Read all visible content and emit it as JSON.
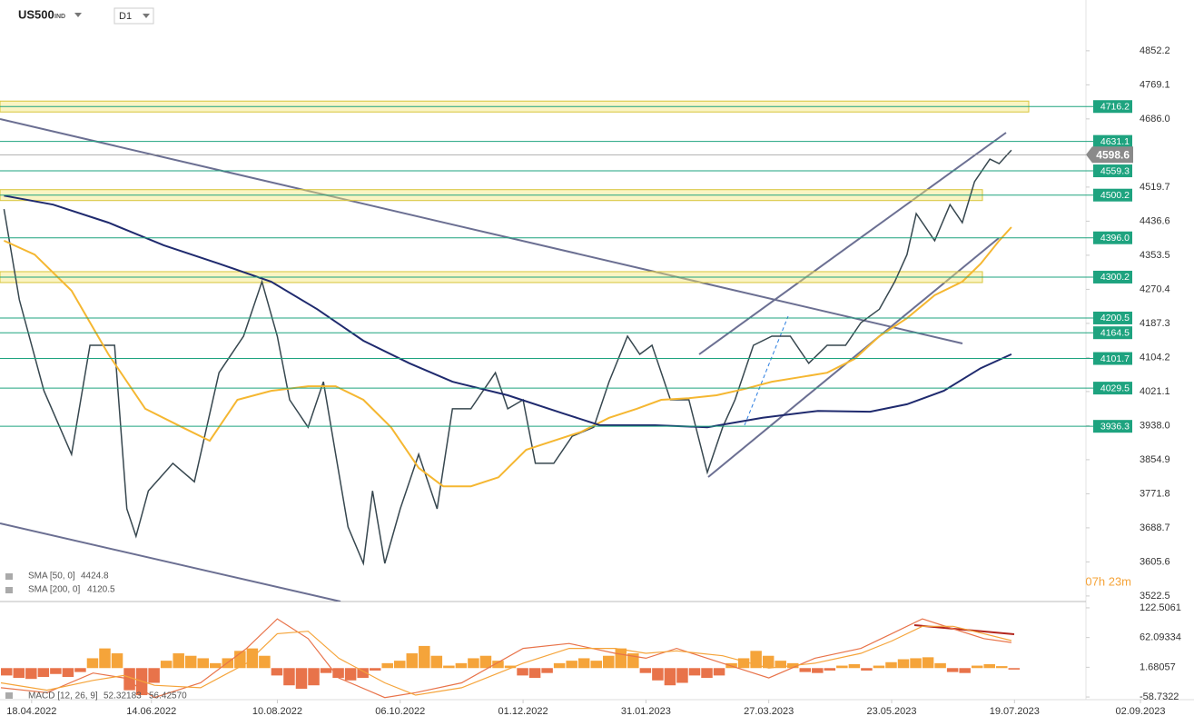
{
  "header": {
    "symbol": "US500",
    "market": "IND",
    "timeframe": "D1"
  },
  "chart_data": [
    {
      "type": "line",
      "xlim": [
        -10,
        361
      ],
      "ylim": [
        3509,
        4976
      ],
      "xticks": [
        {
          "value": 0,
          "label": "18.04.2022"
        },
        {
          "value": 39,
          "label": "14.06.2022"
        },
        {
          "value": 80,
          "label": "10.08.2022"
        },
        {
          "value": 120,
          "label": "06.10.2022"
        },
        {
          "value": 160,
          "label": "01.12.2022"
        },
        {
          "value": 200,
          "label": "31.01.2023"
        },
        {
          "value": 240,
          "label": "27.03.2023"
        },
        {
          "value": 280,
          "label": "23.05.2023"
        },
        {
          "value": 320,
          "label": "19.07.2023"
        },
        {
          "value": 361,
          "label": "02.09.2023"
        }
      ],
      "yticks": [
        4852.2,
        4769.1,
        {
          "value": 4686,
          "label": "4686.0"
        },
        4519.7,
        4436.6,
        4353.5,
        4270.4,
        4187.3,
        4104.2,
        4021.1,
        {
          "value": 3938,
          "label": "3938.0"
        },
        3854.9,
        3771.8,
        3688.7,
        3605.6,
        3522.5
      ],
      "series": [
        {
          "color": "#37474f",
          "x": [
            -9,
            -4,
            4,
            13,
            19,
            27,
            31,
            34,
            38,
            46,
            53,
            61,
            69,
            75,
            80,
            84,
            90,
            95,
            99,
            103,
            108,
            111,
            115,
            120,
            126,
            132,
            137,
            143,
            151,
            155,
            160,
            164,
            170,
            176,
            183,
            188,
            194,
            198,
            202,
            208,
            214,
            220,
            225,
            229,
            235,
            241,
            247,
            253,
            259,
            265,
            270,
            276,
            281,
            285,
            288,
            294,
            299,
            303,
            307,
            312,
            315,
            319
          ],
          "values": [
            4466,
            4245,
            4023,
            3868,
            4134,
            4134,
            3735,
            3668,
            3779,
            3846,
            3801,
            4067,
            4156,
            4289,
            4156,
            4001,
            3934,
            4045,
            3868,
            3691,
            3602,
            3779,
            3602,
            3735,
            3868,
            3735,
            3979,
            3979,
            4067,
            3979,
            4001,
            3846,
            3846,
            3912,
            3934,
            4045,
            4156,
            4112,
            4134,
            4001,
            4001,
            3824,
            3934,
            4001,
            4134,
            4156,
            4156,
            4090,
            4134,
            4134,
            4189,
            4222,
            4289,
            4355,
            4455,
            4389,
            4477,
            4433,
            4533,
            4588,
            4577,
            4610
          ]
        },
        {
          "name": "SMA [50, 0]",
          "last": 4424.8,
          "color": "#f5b731",
          "x": [
            -9,
            1,
            13,
            25,
            37,
            49,
            58,
            67,
            78,
            90,
            99,
            108,
            117,
            126,
            134,
            143,
            152,
            161,
            170,
            179,
            188,
            197,
            205,
            214,
            223,
            232,
            241,
            250,
            259,
            268,
            276,
            285,
            294,
            303,
            309,
            315,
            319
          ],
          "values": [
            4389,
            4355,
            4267,
            4112,
            3979,
            3934,
            3901,
            4001,
            4023,
            4034,
            4034,
            4001,
            3934,
            3835,
            3790,
            3790,
            3812,
            3879,
            3901,
            3923,
            3957,
            3979,
            4001,
            4005,
            4012,
            4027,
            4045,
            4056,
            4067,
            4101,
            4156,
            4200,
            4256,
            4289,
            4333,
            4389,
            4422
          ]
        },
        {
          "name": "SMA [200, 0]",
          "last": 4120.5,
          "color": "#1f2a6e",
          "x": [
            -9,
            7,
            25,
            43,
            61,
            78,
            93,
            108,
            123,
            137,
            155,
            173,
            185,
            203,
            220,
            238,
            256,
            273,
            285,
            297,
            309,
            319
          ],
          "values": [
            4499,
            4477,
            4433,
            4378,
            4333,
            4289,
            4222,
            4145,
            4090,
            4045,
            4012,
            3968,
            3939,
            3939,
            3934,
            3957,
            3974,
            3972,
            3990,
            4023,
            4078,
            4112
          ]
        }
      ],
      "levels": [
        {
          "value": 4716.2,
          "zone": true
        },
        {
          "value": 4631.1,
          "zone": false
        },
        {
          "value": 4559.3,
          "zone": false
        },
        {
          "value": 4500.2,
          "zone": true
        },
        {
          "value": 4396,
          "label": "4396.0",
          "zone": false
        },
        {
          "value": 4300.2,
          "zone": true
        },
        {
          "value": 4200.5,
          "zone": false
        },
        {
          "value": 4164.5,
          "zone": false
        },
        {
          "value": 4101.7,
          "zone": false
        },
        {
          "value": 4029.5,
          "zone": false
        },
        {
          "value": 3936.3,
          "zone": false
        }
      ],
      "level_color": "#1ea37f",
      "zone_color": "#f3e77a",
      "last_price": 4598.6,
      "timer": "07h 23m"
    },
    {
      "type": "macd",
      "name": "MACD [12, 26, 9]",
      "last_values": [
        52.32183,
        {
          "value": 56.4257,
          "label": "56.42570"
        }
      ],
      "ylim": [
        -73.4,
        133.5
      ],
      "yticks": [
        122.5061,
        62.09334,
        1.68057,
        -58.7322
      ],
      "positive_color": "#f5a43a",
      "negative_color": "#e8734a",
      "histogram": {
        "x": [
          -10,
          -6,
          -2,
          2,
          6,
          10,
          14,
          18,
          22,
          26,
          30,
          34,
          38,
          42,
          46,
          50,
          54,
          58,
          62,
          66,
          70,
          74,
          78,
          82,
          86,
          90,
          94,
          98,
          102,
          106,
          110,
          114,
          118,
          122,
          126,
          130,
          134,
          138,
          142,
          146,
          150,
          154,
          158,
          162,
          166,
          170,
          174,
          178,
          182,
          186,
          190,
          194,
          198,
          202,
          206,
          210,
          214,
          218,
          222,
          226,
          230,
          234,
          238,
          242,
          246,
          250,
          254,
          258,
          262,
          266,
          270,
          274,
          278,
          282,
          286,
          290,
          294,
          298,
          302,
          306,
          310,
          314,
          318
        ],
        "values": [
          -15,
          -20,
          -22,
          -18,
          -12,
          -18,
          -8,
          20,
          40,
          30,
          -45,
          -55,
          -30,
          15,
          30,
          25,
          20,
          10,
          20,
          35,
          40,
          25,
          -15,
          -35,
          -42,
          -35,
          -10,
          -20,
          -25,
          -20,
          -5,
          10,
          15,
          30,
          45,
          25,
          5,
          10,
          20,
          25,
          15,
          5,
          -15,
          -20,
          -10,
          10,
          15,
          20,
          15,
          25,
          40,
          30,
          -10,
          -25,
          -35,
          -30,
          -15,
          -20,
          -15,
          10,
          20,
          35,
          25,
          15,
          10,
          -8,
          -10,
          -5,
          5,
          8,
          -5,
          5,
          12,
          18,
          20,
          22,
          10,
          -8,
          -10,
          5,
          8,
          4,
          -3
        ]
      },
      "lines": [
        {
          "color": "#e8734a",
          "x": [
            -10,
            5,
            20,
            30,
            40,
            55,
            70,
            80,
            90,
            100,
            115,
            125,
            140,
            160,
            175,
            190,
            200,
            210,
            225,
            240,
            255,
            270,
            280,
            290,
            300,
            310,
            319
          ],
          "values": [
            -40,
            -50,
            -10,
            -20,
            -60,
            -30,
            40,
            100,
            60,
            -20,
            -60,
            -50,
            -30,
            40,
            50,
            30,
            20,
            40,
            10,
            -20,
            20,
            40,
            70,
            100,
            80,
            60,
            52
          ]
        },
        {
          "color": "#f5a43a",
          "x": [
            -10,
            5,
            20,
            30,
            40,
            55,
            70,
            80,
            90,
            100,
            115,
            125,
            140,
            160,
            175,
            190,
            200,
            210,
            225,
            240,
            255,
            270,
            280,
            290,
            300,
            310,
            319
          ],
          "values": [
            -30,
            -45,
            -25,
            -15,
            -35,
            -40,
            10,
            70,
            75,
            20,
            -30,
            -55,
            -40,
            10,
            40,
            40,
            30,
            35,
            25,
            0,
            10,
            30,
            55,
            85,
            85,
            70,
            56
          ]
        }
      ]
    }
  ]
}
